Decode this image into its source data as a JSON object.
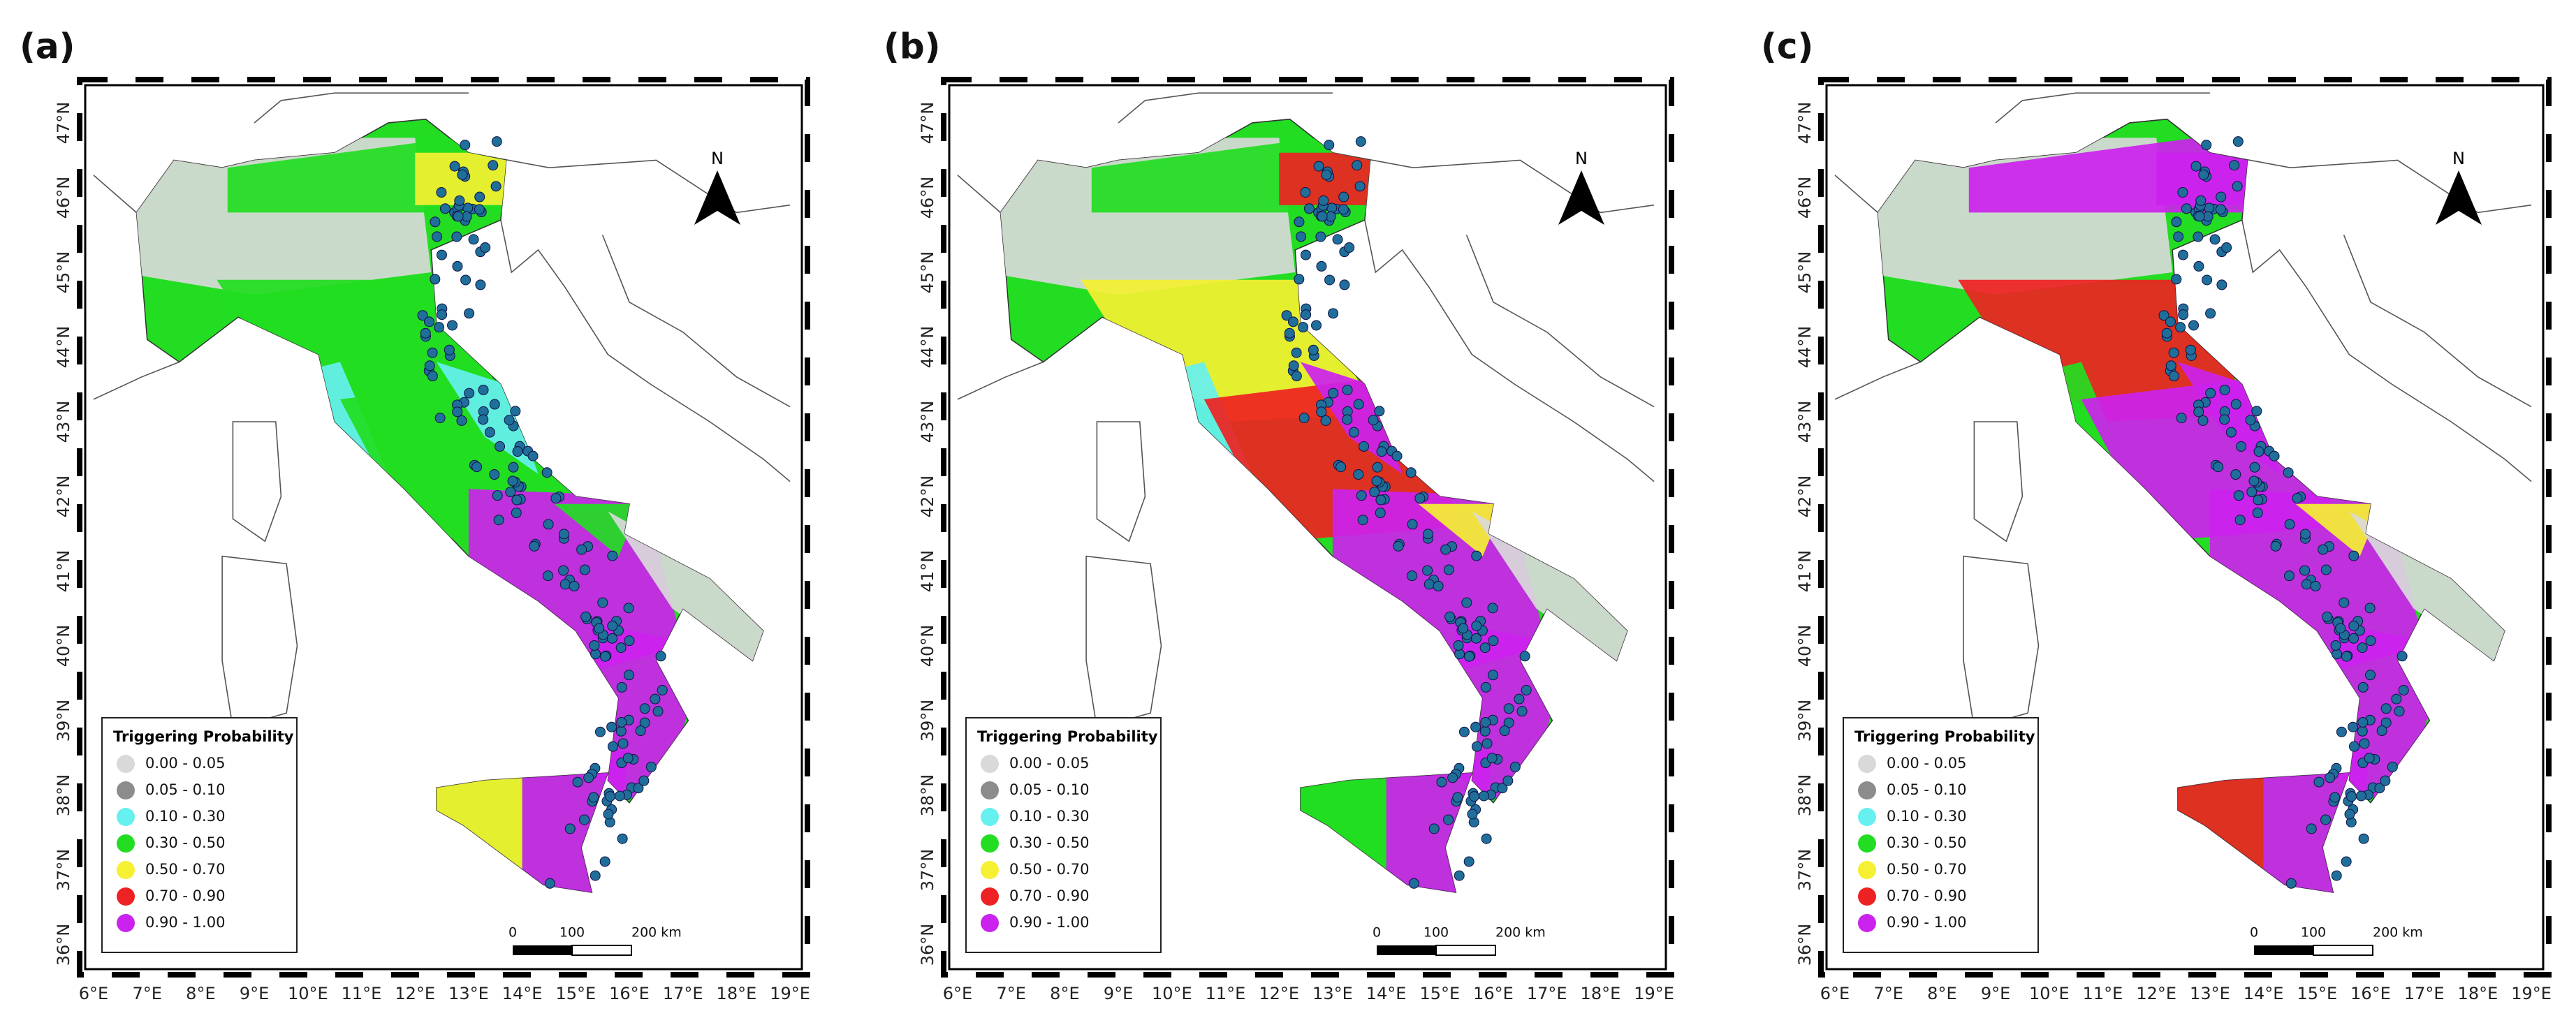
{
  "panels": [
    {
      "label": "(a)"
    },
    {
      "label": "(b)"
    },
    {
      "label": "(c)"
    }
  ],
  "map": {
    "x_ticks": [
      "6°E",
      "7°E",
      "8°E",
      "9°E",
      "10°E",
      "11°E",
      "12°E",
      "13°E",
      "14°E",
      "15°E",
      "16°E",
      "17°E",
      "18°E",
      "19°E"
    ],
    "y_ticks": [
      "47°N",
      "46°N",
      "45°N",
      "44°N",
      "43°N",
      "42°N",
      "41°N",
      "40°N",
      "39°N",
      "38°N",
      "37°N",
      "36°N"
    ],
    "north": "N",
    "legend": {
      "title": "Triggering Probability",
      "items": [
        {
          "label": "0.00 - 0.05",
          "color": "#d9d9d9"
        },
        {
          "label": "0.05 - 0.10",
          "color": "#8c8c8c"
        },
        {
          "label": "0.10 - 0.30",
          "color": "#66f0f0"
        },
        {
          "label": "0.30 - 0.50",
          "color": "#22dd22"
        },
        {
          "label": "0.50 - 0.70",
          "color": "#f5f032"
        },
        {
          "label": "0.70 - 0.90",
          "color": "#ee2222"
        },
        {
          "label": "0.90 - 1.00",
          "color": "#cc22ee"
        }
      ]
    },
    "scale_bar": [
      "0",
      "100",
      "200 km"
    ]
  }
}
